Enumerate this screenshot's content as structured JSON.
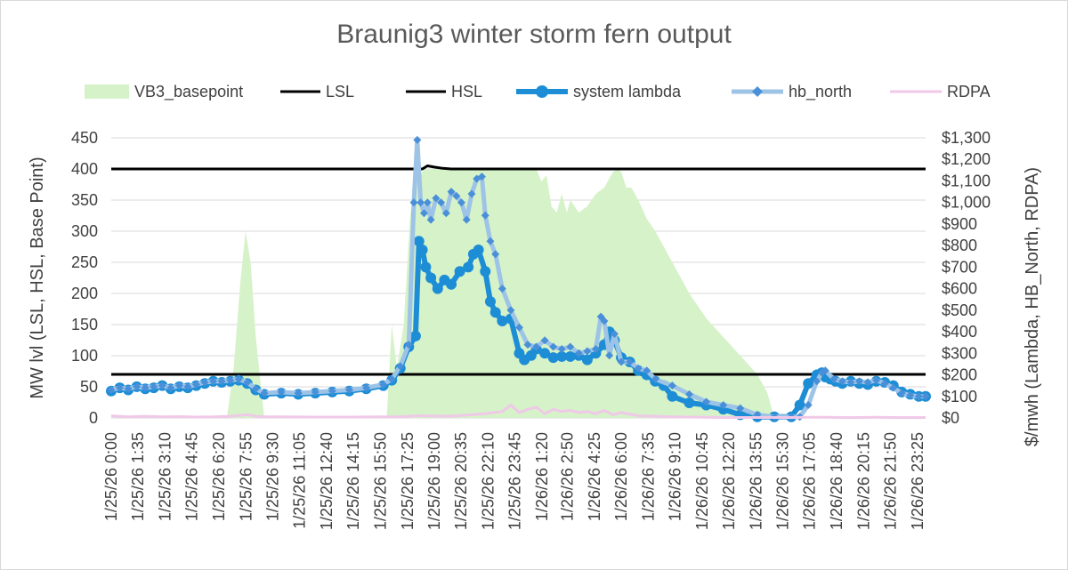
{
  "chart_data": {
    "type": "line",
    "title": "Braunig3 winter storm fern output",
    "ylabel": "MW lvl (LSL, HSL, Base Point)",
    "y2label": "$/mwh   (Lambda, HB_North, RDPA)",
    "ylim": [
      0,
      450
    ],
    "y2lim": [
      0,
      1300
    ],
    "yticks": [
      "0",
      "50",
      "100",
      "150",
      "200",
      "250",
      "300",
      "350",
      "400",
      "450"
    ],
    "y2ticks": [
      "$0",
      "$100",
      "$200",
      "$300",
      "$400",
      "$500",
      "$600",
      "$700",
      "$800",
      "$900",
      "$1,000",
      "$1,100",
      "$1,200",
      "$1,300"
    ],
    "xtick_labels": [
      "1/25/26 0:00",
      "1/25/26 1:35",
      "1/25/26 3:10",
      "1/25/26 4:45",
      "1/25/26 6:20",
      "1/25/26 7:55",
      "1/25/26 9:30",
      "1/25/26 11:05",
      "1/25/26 12:40",
      "1/25/26 14:15",
      "1/25/26 15:50",
      "1/25/26 17:25",
      "1/25/26 19:00",
      "1/25/26 20:35",
      "1/25/26 22:10",
      "1/25/26 23:45",
      "1/26/26 1:20",
      "1/26/26 2:50",
      "1/26/26 4:25",
      "1/26/26 6:00",
      "1/26/26 7:35",
      "1/26/26 9:10",
      "1/26/26 10:45",
      "1/26/26 12:20",
      "1/26/26 13:55",
      "1/26/26 15:30",
      "1/26/26 17:05",
      "1/26/26 18:40",
      "1/26/26 20:15",
      "1/26/26 21:50",
      "1/26/26 23:25"
    ],
    "x_hours": [
      0,
      1.58,
      3.17,
      4.75,
      6.33,
      7.92,
      9.5,
      11.08,
      12.67,
      14.25,
      15.83,
      17.42,
      19.0,
      20.58,
      22.17,
      23.75,
      25.33,
      26.83,
      28.42,
      30.0,
      31.58,
      33.17,
      34.75,
      36.33,
      37.92,
      39.5,
      41.08,
      42.67,
      44.25,
      45.83,
      47.42
    ],
    "grid": true,
    "legend_position": "top",
    "series": [
      {
        "name": "VB3_basepoint",
        "kind": "area",
        "axis": "left",
        "color": "#d6f2c9",
        "x": [
          0,
          6.8,
          7.2,
          7.6,
          7.9,
          8.2,
          8.5,
          9.0,
          16.2,
          16.5,
          16.8,
          17.2,
          17.6,
          18.0,
          18.4,
          18.7,
          19.2,
          20.5,
          22.0,
          23.5,
          25.0,
          25.3,
          25.6,
          25.9,
          26.2,
          26.5,
          26.8,
          27.0,
          27.5,
          28.0,
          28.5,
          29.0,
          29.5,
          29.8,
          30.0,
          30.3,
          30.6,
          31.0,
          31.5,
          32.0,
          33.0,
          34.0,
          35.0,
          36.0,
          37.0,
          38.0,
          38.6,
          39.0,
          47.9
        ],
        "y": [
          0,
          0,
          80,
          220,
          300,
          250,
          130,
          0,
          0,
          150,
          80,
          150,
          330,
          380,
          400,
          400,
          400,
          400,
          400,
          400,
          400,
          380,
          390,
          340,
          330,
          360,
          330,
          350,
          330,
          340,
          360,
          370,
          395,
          400,
          395,
          370,
          370,
          350,
          320,
          300,
          250,
          200,
          160,
          130,
          100,
          70,
          40,
          0,
          0
        ]
      },
      {
        "name": "LSL",
        "kind": "line",
        "axis": "left",
        "color": "#000000",
        "x": [
          0,
          47.9
        ],
        "y": [
          70,
          70
        ]
      },
      {
        "name": "HSL",
        "kind": "line",
        "axis": "left",
        "color": "#000000",
        "x": [
          0,
          18.3,
          18.6,
          19.0,
          19.5,
          20.0,
          20.5,
          47.9
        ],
        "y": [
          400,
          400,
          405,
          403,
          401,
          400,
          400,
          400
        ]
      },
      {
        "name": "system lambda",
        "kind": "line-marker",
        "axis": "right",
        "color": "#1d8ed6",
        "x": [
          0,
          0.5,
          1.0,
          1.5,
          2.0,
          2.5,
          3.0,
          3.5,
          4.0,
          4.5,
          5.0,
          5.5,
          6.0,
          6.5,
          7.0,
          7.5,
          8.0,
          8.5,
          9.0,
          10.0,
          11.0,
          12.0,
          13.0,
          14.0,
          15.0,
          16.0,
          16.5,
          17.0,
          17.5,
          17.9,
          18.1,
          18.3,
          18.5,
          18.8,
          19.2,
          19.6,
          20.0,
          20.5,
          21.0,
          21.3,
          21.6,
          22.0,
          22.3,
          22.6,
          23.0,
          23.5,
          24.0,
          24.3,
          24.7,
          25.0,
          25.5,
          26.0,
          26.5,
          27.0,
          27.5,
          28.0,
          28.5,
          29.0,
          29.3,
          29.6,
          30.0,
          30.5,
          31.0,
          31.5,
          32.0,
          32.5,
          33.0,
          34.0,
          35.0,
          36.0,
          37.0,
          38.0,
          39.0,
          40.0,
          40.5,
          41.0,
          41.5,
          41.8,
          42.0,
          42.3,
          42.6,
          43.0,
          43.5,
          44.0,
          44.5,
          45.0,
          45.5,
          46.0,
          46.5,
          47.0,
          47.5,
          47.9
        ],
        "y": [
          125,
          140,
          130,
          145,
          135,
          140,
          150,
          135,
          145,
          140,
          150,
          160,
          170,
          165,
          170,
          175,
          160,
          130,
          110,
          115,
          110,
          115,
          120,
          125,
          135,
          150,
          175,
          230,
          330,
          380,
          820,
          780,
          700,
          650,
          600,
          640,
          620,
          680,
          700,
          760,
          780,
          680,
          540,
          490,
          450,
          460,
          300,
          270,
          290,
          320,
          300,
          280,
          285,
          285,
          290,
          270,
          300,
          340,
          400,
          360,
          280,
          260,
          220,
          200,
          170,
          150,
          100,
          70,
          60,
          40,
          15,
          5,
          5,
          5,
          60,
          160,
          200,
          210,
          190,
          180,
          170,
          160,
          170,
          160,
          155,
          170,
          165,
          150,
          120,
          110,
          100,
          100
        ]
      },
      {
        "name": "hb_north",
        "kind": "line-marker",
        "axis": "right",
        "color": "#9dc3e6",
        "marker_color": "#4a90d9",
        "x": [
          0,
          0.5,
          1.0,
          1.5,
          2.0,
          2.5,
          3.0,
          3.5,
          4.0,
          4.5,
          5.0,
          5.5,
          6.0,
          6.5,
          7.0,
          7.5,
          8.0,
          8.5,
          9.0,
          10.0,
          11.0,
          12.0,
          13.0,
          14.0,
          15.0,
          16.0,
          16.5,
          17.0,
          17.5,
          17.8,
          18.0,
          18.2,
          18.4,
          18.6,
          18.8,
          19.1,
          19.4,
          19.7,
          20.0,
          20.3,
          20.6,
          20.9,
          21.2,
          21.5,
          21.8,
          22.0,
          22.3,
          22.6,
          23.0,
          23.5,
          24.0,
          24.5,
          25.0,
          25.5,
          26.0,
          26.5,
          27.0,
          27.5,
          28.0,
          28.5,
          28.8,
          29.0,
          29.3,
          29.6,
          30.0,
          30.5,
          31.0,
          31.5,
          32.0,
          33.0,
          34.0,
          35.0,
          36.0,
          37.0,
          38.0,
          39.0,
          40.0,
          40.5,
          41.0,
          41.5,
          41.8,
          42.0,
          42.5,
          43.0,
          43.5,
          44.0,
          44.5,
          45.0,
          45.5,
          46.0,
          46.5,
          47.0,
          47.5,
          47.9
        ],
        "y": [
          130,
          140,
          135,
          145,
          140,
          145,
          150,
          140,
          150,
          145,
          155,
          165,
          170,
          170,
          175,
          180,
          165,
          135,
          115,
          120,
          115,
          120,
          125,
          130,
          140,
          155,
          180,
          240,
          340,
          1000,
          1290,
          1000,
          950,
          1000,
          920,
          1020,
          1000,
          950,
          1050,
          1030,
          1000,
          920,
          1040,
          1110,
          1120,
          940,
          820,
          760,
          600,
          500,
          420,
          340,
          330,
          360,
          330,
          320,
          330,
          300,
          310,
          320,
          470,
          450,
          290,
          390,
          260,
          260,
          230,
          220,
          180,
          150,
          110,
          75,
          60,
          45,
          15,
          5,
          5,
          5,
          60,
          170,
          210,
          220,
          180,
          170,
          165,
          170,
          165,
          175,
          160,
          140,
          115,
          105,
          100,
          100
        ]
      },
      {
        "name": "RDPA",
        "kind": "line",
        "axis": "right",
        "color": "#f0c8e8",
        "x": [
          0,
          1,
          2,
          3,
          4,
          5,
          6,
          7,
          8,
          8.5,
          9,
          10,
          12,
          14,
          16,
          17,
          18,
          20,
          22,
          23,
          23.5,
          24,
          24.5,
          25,
          25.5,
          26,
          26.5,
          27,
          27.5,
          28,
          28.5,
          29,
          29.5,
          30,
          31,
          32,
          33,
          34,
          35,
          36,
          37,
          38,
          39,
          40,
          41,
          42,
          43,
          44,
          45,
          46,
          47,
          47.9
        ],
        "y": [
          10,
          5,
          8,
          5,
          6,
          4,
          5,
          8,
          15,
          8,
          5,
          5,
          4,
          4,
          5,
          5,
          10,
          8,
          20,
          30,
          60,
          25,
          40,
          50,
          20,
          40,
          30,
          35,
          25,
          30,
          20,
          35,
          15,
          25,
          10,
          8,
          5,
          4,
          3,
          2,
          2,
          2,
          2,
          2,
          3,
          3,
          2,
          2,
          3,
          2,
          2,
          2
        ]
      }
    ]
  }
}
